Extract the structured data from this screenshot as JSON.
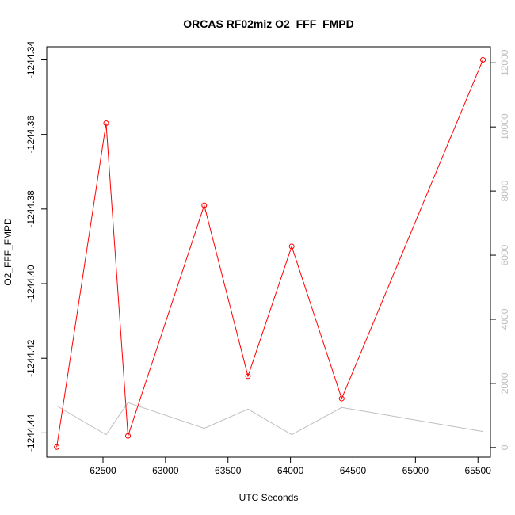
{
  "chart_data": {
    "type": "line",
    "title": "ORCAS RF02miz O2_FFF_FMPD",
    "xlabel": "UTC Seconds",
    "ylabel": "O2_FFF_FMPD",
    "xlim": [
      62050,
      65600
    ],
    "ylim": [
      -1244.4465,
      -1244.3365
    ],
    "y2lim": [
      -300,
      12500
    ],
    "x_ticks": [
      62500,
      63000,
      63500,
      64000,
      64500,
      65000,
      65500
    ],
    "x_tick_labels": [
      "62500",
      "63000",
      "63500",
      "64000",
      "64500",
      "65000",
      "65500"
    ],
    "y_ticks": [
      -1244.44,
      -1244.42,
      -1244.4,
      -1244.38,
      -1244.36,
      -1244.34
    ],
    "y_tick_labels": [
      "-1244.44",
      "-1244.42",
      "-1244.40",
      "-1244.38",
      "-1244.36",
      "-1244.34"
    ],
    "y2_ticks": [
      0,
      2000,
      4000,
      6000,
      8000,
      10000,
      12000
    ],
    "y2_tick_labels": [
      "0",
      "2000",
      "4000",
      "6000",
      "8000",
      "10000",
      "12000"
    ],
    "grid": false,
    "series": [
      {
        "axis": "left",
        "color": "#ff0000",
        "marker": "open-circle",
        "x": [
          62130,
          62525,
          62700,
          63310,
          63660,
          64010,
          64410,
          65540
        ],
        "y": [
          -1244.4438,
          -1244.357,
          -1244.4408,
          -1244.379,
          -1244.4248,
          -1244.39,
          -1244.4308,
          -1244.34
        ]
      },
      {
        "axis": "right",
        "color": "#bebebe",
        "marker": "none",
        "x": [
          62130,
          62525,
          62700,
          63310,
          63660,
          64010,
          64410,
          65540
        ],
        "y": [
          1300,
          400,
          1400,
          600,
          1200,
          400,
          1250,
          500
        ]
      }
    ]
  }
}
